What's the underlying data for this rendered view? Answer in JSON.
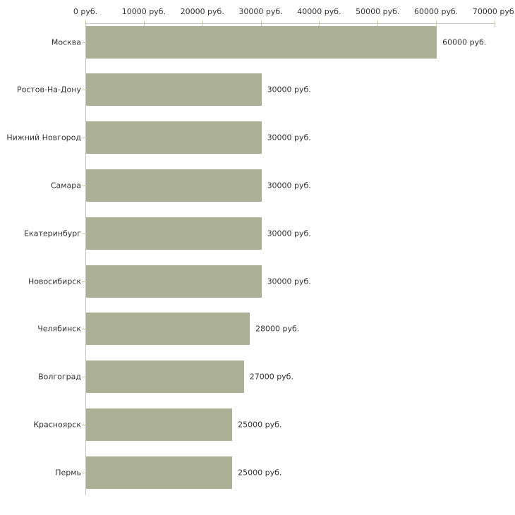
{
  "page": {
    "background_color": "#ffffff"
  },
  "chart_data": {
    "type": "bar",
    "orientation": "horizontal",
    "title": "",
    "categories": [
      "Москва",
      "Ростов-На-Дону",
      "Нижний Новгород",
      "Самара",
      "Екатеринбург",
      "Новосибирск",
      "Челябинск",
      "Волгоград",
      "Красноярск",
      "Пермь"
    ],
    "values": [
      60000,
      30000,
      30000,
      30000,
      30000,
      30000,
      28000,
      27000,
      25000,
      25000
    ],
    "value_labels": [
      "60000 руб.",
      "30000 руб.",
      "30000 руб.",
      "30000 руб.",
      "30000 руб.",
      "30000 руб.",
      "28000 руб.",
      "27000 руб.",
      "25000 руб.",
      "25000 руб."
    ],
    "xlabel": "",
    "ylabel": "",
    "x_axis": {
      "position": "top",
      "xlim": [
        0,
        70000
      ],
      "ticks": [
        0,
        10000,
        20000,
        30000,
        40000,
        50000,
        60000,
        70000
      ],
      "tick_labels": [
        "0 руб.",
        "10000 руб.",
        "20000 руб.",
        "30000 руб.",
        "40000 руб.",
        "50000 руб.",
        "60000 руб.",
        "70000 руб."
      ]
    },
    "unit": "руб.",
    "grid": false,
    "legend": false,
    "colors": {
      "bar": "#abb097",
      "axis_line": "#c6c6c6",
      "tick_mark": "#cccc99",
      "text": "#333333"
    }
  }
}
